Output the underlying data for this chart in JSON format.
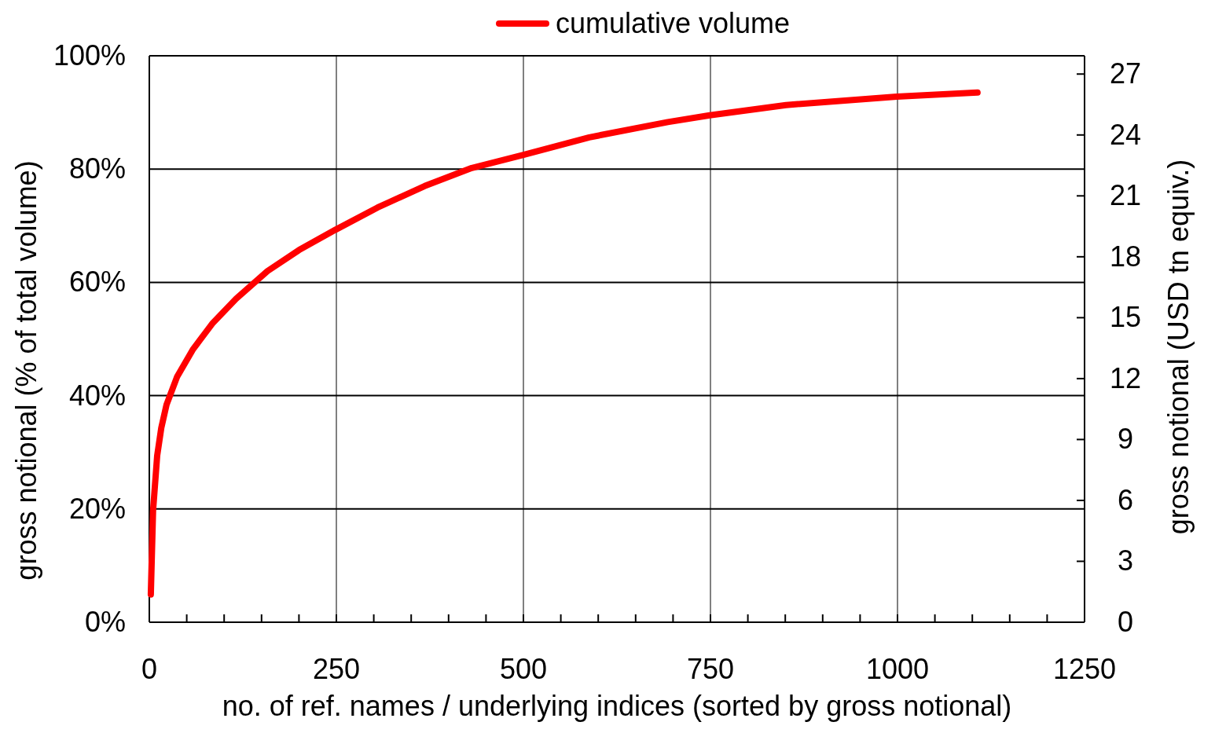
{
  "chart_data": {
    "type": "line",
    "xlabel": "no. of ref. names / underlying indices (sorted by gross notional)",
    "ylabel": "gross notional (% of total volume)",
    "y2label": "gross notional (USD tn equiv.)",
    "xlim": [
      0,
      1250
    ],
    "xticks": [
      0,
      {
        "value": 50,
        "label": null
      },
      {
        "value": 100,
        "label": null
      },
      {
        "value": 150,
        "label": null
      },
      {
        "value": 200,
        "label": null
      },
      250,
      {
        "value": 300,
        "label": null
      },
      {
        "value": 350,
        "label": null
      },
      {
        "value": 400,
        "label": null
      },
      {
        "value": 450,
        "label": null
      },
      500,
      {
        "value": 550,
        "label": null
      },
      {
        "value": 600,
        "label": null
      },
      {
        "value": 650,
        "label": null
      },
      {
        "value": 700,
        "label": null
      },
      750,
      {
        "value": 800,
        "label": null
      },
      {
        "value": 850,
        "label": null
      },
      {
        "value": 900,
        "label": null
      },
      {
        "value": 950,
        "label": null
      },
      1000,
      {
        "value": 1050,
        "label": null
      },
      {
        "value": 1100,
        "label": null
      },
      {
        "value": 1150,
        "label": null
      },
      {
        "value": 1200,
        "label": null
      },
      1250
    ],
    "ylim": [
      0,
      100
    ],
    "yticks": [
      {
        "value": 0,
        "label": "0%"
      },
      {
        "value": 20,
        "label": "20%"
      },
      {
        "value": 40,
        "label": "40%"
      },
      {
        "value": 60,
        "label": "60%"
      },
      {
        "value": 80,
        "label": "80%"
      },
      {
        "value": 100,
        "label": "100%"
      }
    ],
    "y2lim": [
      0,
      27.9
    ],
    "y2ticks": [
      0,
      3,
      6,
      9,
      12,
      15,
      18,
      21,
      24,
      27
    ],
    "grid": true,
    "legend": "top",
    "marker": "none",
    "line_style": "solid",
    "series": [
      {
        "name": "cumulative volume",
        "color": "#ff0000",
        "x": [
          2,
          5,
          10.5,
          16,
          23,
          37,
          58,
          84,
          116,
          158,
          200,
          249,
          305,
          368,
          431,
          500,
          588,
          693,
          749,
          851,
          999,
          1107
        ],
        "values": [
          4.9,
          19.7,
          29.4,
          34.3,
          38.4,
          43.3,
          48.1,
          52.7,
          57.1,
          62.0,
          65.7,
          69.3,
          73.2,
          77.0,
          80.2,
          82.5,
          85.6,
          88.3,
          89.5,
          91.3,
          92.8,
          93.5
        ]
      }
    ]
  }
}
